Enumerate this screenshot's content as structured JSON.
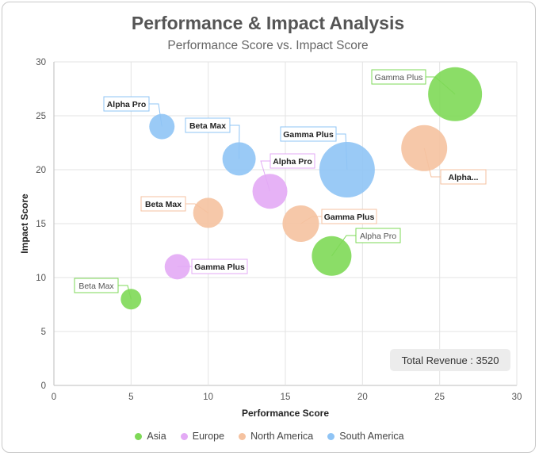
{
  "chart_data": {
    "type": "bubble",
    "title": "Performance & Impact Analysis",
    "subtitle": "Performance Score vs. Impact Score",
    "xlabel": "Performance Score",
    "ylabel": "Impact Score",
    "xlim": [
      0,
      30
    ],
    "ylim": [
      0,
      30
    ],
    "xticks": [
      0,
      5,
      10,
      15,
      20,
      25,
      30
    ],
    "yticks": [
      0,
      5,
      10,
      15,
      20,
      25,
      30
    ],
    "grid": true,
    "legend_position": "bottom",
    "series": [
      {
        "name": "Asia",
        "color": "#7ed957",
        "points": [
          {
            "label": "Gamma Plus",
            "x": 26,
            "y": 27,
            "size": 34,
            "bold": false
          },
          {
            "label": "Alpha Pro",
            "x": 18,
            "y": 12,
            "size": 25,
            "bold": false
          },
          {
            "label": "Beta Max",
            "x": 5,
            "y": 8,
            "size": 13,
            "bold": false
          }
        ]
      },
      {
        "name": "Europe",
        "color": "#e3aaf5",
        "points": [
          {
            "label": "Alpha Pro",
            "x": 14,
            "y": 18,
            "size": 22,
            "bold": true
          },
          {
            "label": "Gamma Plus",
            "x": 8,
            "y": 11,
            "size": 16,
            "bold": true
          }
        ]
      },
      {
        "name": "North America",
        "color": "#f5c2a0",
        "points": [
          {
            "label": "Alpha...",
            "x": 24,
            "y": 22,
            "size": 29,
            "bold": true
          },
          {
            "label": "Gamma Plus",
            "x": 16,
            "y": 15,
            "size": 23,
            "bold": true
          },
          {
            "label": "Beta Max",
            "x": 10,
            "y": 16,
            "size": 19,
            "bold": true
          }
        ]
      },
      {
        "name": "South America",
        "color": "#8fc4f5",
        "points": [
          {
            "label": "Gamma Plus",
            "x": 19,
            "y": 20,
            "size": 35,
            "bold": true
          },
          {
            "label": "Beta Max",
            "x": 12,
            "y": 21,
            "size": 21,
            "bold": true
          },
          {
            "label": "Alpha Pro",
            "x": 7,
            "y": 24,
            "size": 16,
            "bold": true
          }
        ]
      }
    ],
    "annotation": "Total Revenue : 3520"
  }
}
